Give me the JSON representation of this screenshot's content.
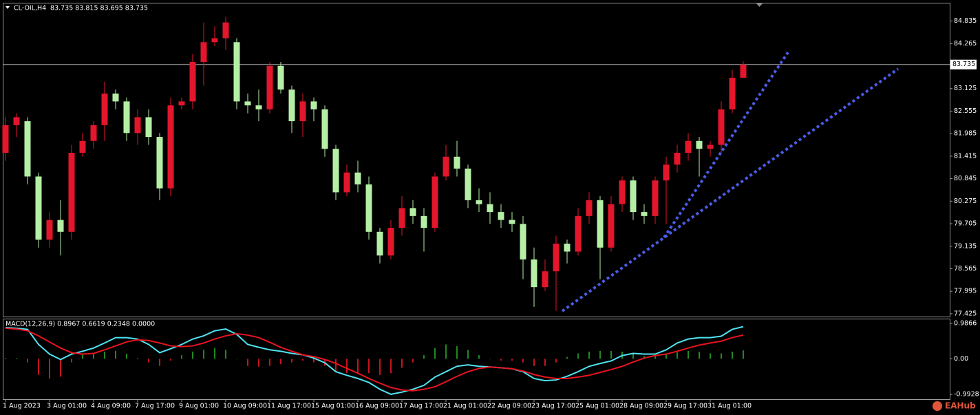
{
  "header": {
    "symbol": "CL-OIL,H4",
    "quote": "83.735 83.815 83.695 83.735"
  },
  "watermark": "EAHub",
  "chart_data": [
    {
      "type": "candlestick",
      "categories": [
        "1 Aug 2023",
        null,
        null,
        null,
        "3 Aug 01:00",
        null,
        null,
        null,
        "4 Aug 09:00",
        null,
        null,
        null,
        "7 Aug 17:00",
        null,
        null,
        null,
        "9 Aug 01:00",
        null,
        null,
        null,
        "10 Aug 09:00",
        null,
        null,
        null,
        "11 Aug 17:00",
        null,
        null,
        null,
        "15 Aug 01:00",
        null,
        null,
        null,
        "16 Aug 09:00",
        null,
        null,
        null,
        "17 Aug 17:00",
        null,
        null,
        null,
        "21 Aug 01:00",
        null,
        null,
        null,
        "22 Aug 09:00",
        null,
        null,
        null,
        "23 Aug 17:00",
        null,
        null,
        null,
        "25 Aug 01:00",
        null,
        null,
        null,
        "28 Aug 09:00",
        null,
        null,
        null,
        "29 Aug 17:00",
        null,
        null,
        null,
        "31 Aug 01:00",
        null,
        null,
        null
      ],
      "candles": [
        [
          81.5,
          82.4,
          81.3,
          82.2
        ],
        [
          82.2,
          82.5,
          81.9,
          82.4
        ],
        [
          82.3,
          82.4,
          80.7,
          80.9
        ],
        [
          80.9,
          81.0,
          79.1,
          79.3
        ],
        [
          79.3,
          80.0,
          79.1,
          79.8
        ],
        [
          79.8,
          80.3,
          78.9,
          79.5
        ],
        [
          79.5,
          81.7,
          79.3,
          81.5
        ],
        [
          81.5,
          82.0,
          81.4,
          81.8
        ],
        [
          81.8,
          82.3,
          81.6,
          82.2
        ],
        [
          82.2,
          83.3,
          81.8,
          83.0
        ],
        [
          83.0,
          83.1,
          82.6,
          82.8
        ],
        [
          82.8,
          82.9,
          81.8,
          82.0
        ],
        [
          82.0,
          82.6,
          81.7,
          82.4
        ],
        [
          82.4,
          82.6,
          81.7,
          81.9
        ],
        [
          81.9,
          82.0,
          80.3,
          80.6
        ],
        [
          80.6,
          82.9,
          80.4,
          82.7
        ],
        [
          82.7,
          82.9,
          82.6,
          82.8
        ],
        [
          82.8,
          84.0,
          82.6,
          83.8
        ],
        [
          83.8,
          84.8,
          83.2,
          84.3
        ],
        [
          84.3,
          84.7,
          84.2,
          84.4
        ],
        [
          84.4,
          84.95,
          84.1,
          84.8
        ],
        [
          84.3,
          84.4,
          82.6,
          82.8
        ],
        [
          82.8,
          83.0,
          82.5,
          82.7
        ],
        [
          82.7,
          83.1,
          82.3,
          82.6
        ],
        [
          82.6,
          83.8,
          82.5,
          83.7
        ],
        [
          83.7,
          83.8,
          83.0,
          83.1
        ],
        [
          83.1,
          83.2,
          82.0,
          82.3
        ],
        [
          82.3,
          83.0,
          81.9,
          82.8
        ],
        [
          82.8,
          82.9,
          82.3,
          82.6
        ],
        [
          82.6,
          82.7,
          81.4,
          81.6
        ],
        [
          81.6,
          81.7,
          80.3,
          80.5
        ],
        [
          80.5,
          81.2,
          80.4,
          81.0
        ],
        [
          81.0,
          81.3,
          80.5,
          80.7
        ],
        [
          80.7,
          80.9,
          79.3,
          79.5
        ],
        [
          79.5,
          79.6,
          78.7,
          78.9
        ],
        [
          78.9,
          79.8,
          78.8,
          79.6
        ],
        [
          79.6,
          80.4,
          79.4,
          80.1
        ],
        [
          80.1,
          80.3,
          79.7,
          79.9
        ],
        [
          79.9,
          80.1,
          79.0,
          79.6
        ],
        [
          79.6,
          81.0,
          79.5,
          80.9
        ],
        [
          80.9,
          81.7,
          80.8,
          81.4
        ],
        [
          81.4,
          81.8,
          80.9,
          81.1
        ],
        [
          81.1,
          81.2,
          80.1,
          80.3
        ],
        [
          80.3,
          80.6,
          80.0,
          80.2
        ],
        [
          80.2,
          80.5,
          79.7,
          80.0
        ],
        [
          80.0,
          80.2,
          79.6,
          79.8
        ],
        [
          79.8,
          80.0,
          79.5,
          79.7
        ],
        [
          79.7,
          79.9,
          78.3,
          78.8
        ],
        [
          78.8,
          79.1,
          77.6,
          78.1
        ],
        [
          78.1,
          78.8,
          78.0,
          78.5
        ],
        [
          78.5,
          79.4,
          77.5,
          79.2
        ],
        [
          79.2,
          79.3,
          78.7,
          79.0
        ],
        [
          79.0,
          80.1,
          78.9,
          79.9
        ],
        [
          79.9,
          80.5,
          79.7,
          80.3
        ],
        [
          80.3,
          80.4,
          78.3,
          79.1
        ],
        [
          79.1,
          80.4,
          79.0,
          80.2
        ],
        [
          80.2,
          80.9,
          80.0,
          80.8
        ],
        [
          80.8,
          80.9,
          79.8,
          80.0
        ],
        [
          80.0,
          80.2,
          79.7,
          79.9
        ],
        [
          79.9,
          80.9,
          79.7,
          80.8
        ],
        [
          80.8,
          81.4,
          79.7,
          81.2
        ],
        [
          81.2,
          81.7,
          81.0,
          81.5
        ],
        [
          81.5,
          82.0,
          81.3,
          81.8
        ],
        [
          81.8,
          81.9,
          80.9,
          81.6
        ],
        [
          81.6,
          81.8,
          81.4,
          81.7
        ],
        [
          81.7,
          82.8,
          81.5,
          82.6
        ],
        [
          82.6,
          83.6,
          82.5,
          83.4
        ],
        [
          83.4,
          83.815,
          83.4,
          83.735
        ]
      ],
      "up_color": "#e3162c",
      "down_color": "#b5efa6",
      "ylim": [
        77.354,
        85.298
      ],
      "yticks": [
        84.835,
        84.265,
        83.125,
        82.555,
        81.985,
        81.415,
        80.845,
        80.275,
        79.705,
        79.135,
        78.565,
        77.995,
        77.425
      ],
      "last_price": 83.735
    },
    {
      "type": "macd",
      "title": "MACD(12,26,9) 0.8967 0.6619 0.2348 0.0000",
      "series": [
        {
          "color": "#4fe3f0",
          "values": [
            0.87,
            0.85,
            0.82,
            0.4,
            0.13,
            -0.02,
            0.13,
            0.21,
            0.3,
            0.44,
            0.59,
            0.59,
            0.55,
            0.4,
            0.17,
            0.28,
            0.4,
            0.55,
            0.64,
            0.78,
            0.83,
            0.68,
            0.4,
            0.32,
            0.25,
            0.21,
            0.15,
            0.11,
            0.02,
            -0.11,
            -0.36,
            -0.46,
            -0.55,
            -0.66,
            -0.85,
            -0.99,
            -0.93,
            -0.85,
            -0.74,
            -0.51,
            -0.36,
            -0.21,
            -0.17,
            -0.21,
            -0.23,
            -0.25,
            -0.28,
            -0.36,
            -0.55,
            -0.61,
            -0.59,
            -0.49,
            -0.36,
            -0.21,
            -0.13,
            -0.06,
            0.09,
            0.15,
            0.13,
            0.13,
            0.25,
            0.44,
            0.55,
            0.59,
            0.59,
            0.63,
            0.82,
            0.8967
          ]
        },
        {
          "color": "#e8141e",
          "values": [
            0.85,
            0.83,
            0.78,
            0.64,
            0.47,
            0.3,
            0.17,
            0.13,
            0.15,
            0.25,
            0.36,
            0.47,
            0.53,
            0.51,
            0.44,
            0.36,
            0.34,
            0.36,
            0.44,
            0.55,
            0.64,
            0.7,
            0.66,
            0.59,
            0.46,
            0.32,
            0.21,
            0.11,
            0.06,
            -0.02,
            -0.13,
            -0.27,
            -0.4,
            -0.55,
            -0.68,
            -0.8,
            -0.87,
            -0.89,
            -0.85,
            -0.78,
            -0.64,
            -0.49,
            -0.36,
            -0.27,
            -0.23,
            -0.25,
            -0.28,
            -0.34,
            -0.44,
            -0.51,
            -0.55,
            -0.55,
            -0.51,
            -0.46,
            -0.38,
            -0.3,
            -0.21,
            -0.09,
            0.02,
            0.09,
            0.13,
            0.21,
            0.3,
            0.38,
            0.44,
            0.49,
            0.59,
            0.6619
          ]
        }
      ],
      "histogram": {
        "up_color": "#1f8a1f",
        "down_color": "#c8141e",
        "values": [
          0.02,
          0.02,
          -0.1,
          -0.45,
          -0.55,
          -0.5,
          -0.1,
          0.12,
          0.15,
          0.2,
          0.22,
          0.14,
          0.02,
          -0.1,
          -0.2,
          -0.05,
          0.1,
          0.2,
          0.25,
          0.3,
          0.25,
          0.0,
          -0.2,
          -0.22,
          -0.2,
          -0.15,
          -0.1,
          -0.05,
          -0.1,
          -0.2,
          -0.35,
          -0.4,
          -0.4,
          -0.4,
          -0.45,
          -0.4,
          -0.25,
          -0.1,
          0.1,
          0.3,
          0.4,
          0.35,
          0.25,
          0.1,
          0.0,
          -0.05,
          -0.05,
          -0.1,
          -0.2,
          -0.2,
          -0.1,
          0.05,
          0.15,
          0.2,
          0.22,
          0.22,
          0.2,
          0.15,
          0.08,
          0.08,
          0.12,
          0.18,
          0.22,
          0.2,
          0.15,
          0.15,
          0.2,
          0.2348
        ]
      },
      "ylim": [
        -1.126,
        1.1
      ],
      "yticks": [
        0.9866,
        {
          "value": 0,
          "label": "0.00"
        },
        -0.9928
      ]
    }
  ]
}
